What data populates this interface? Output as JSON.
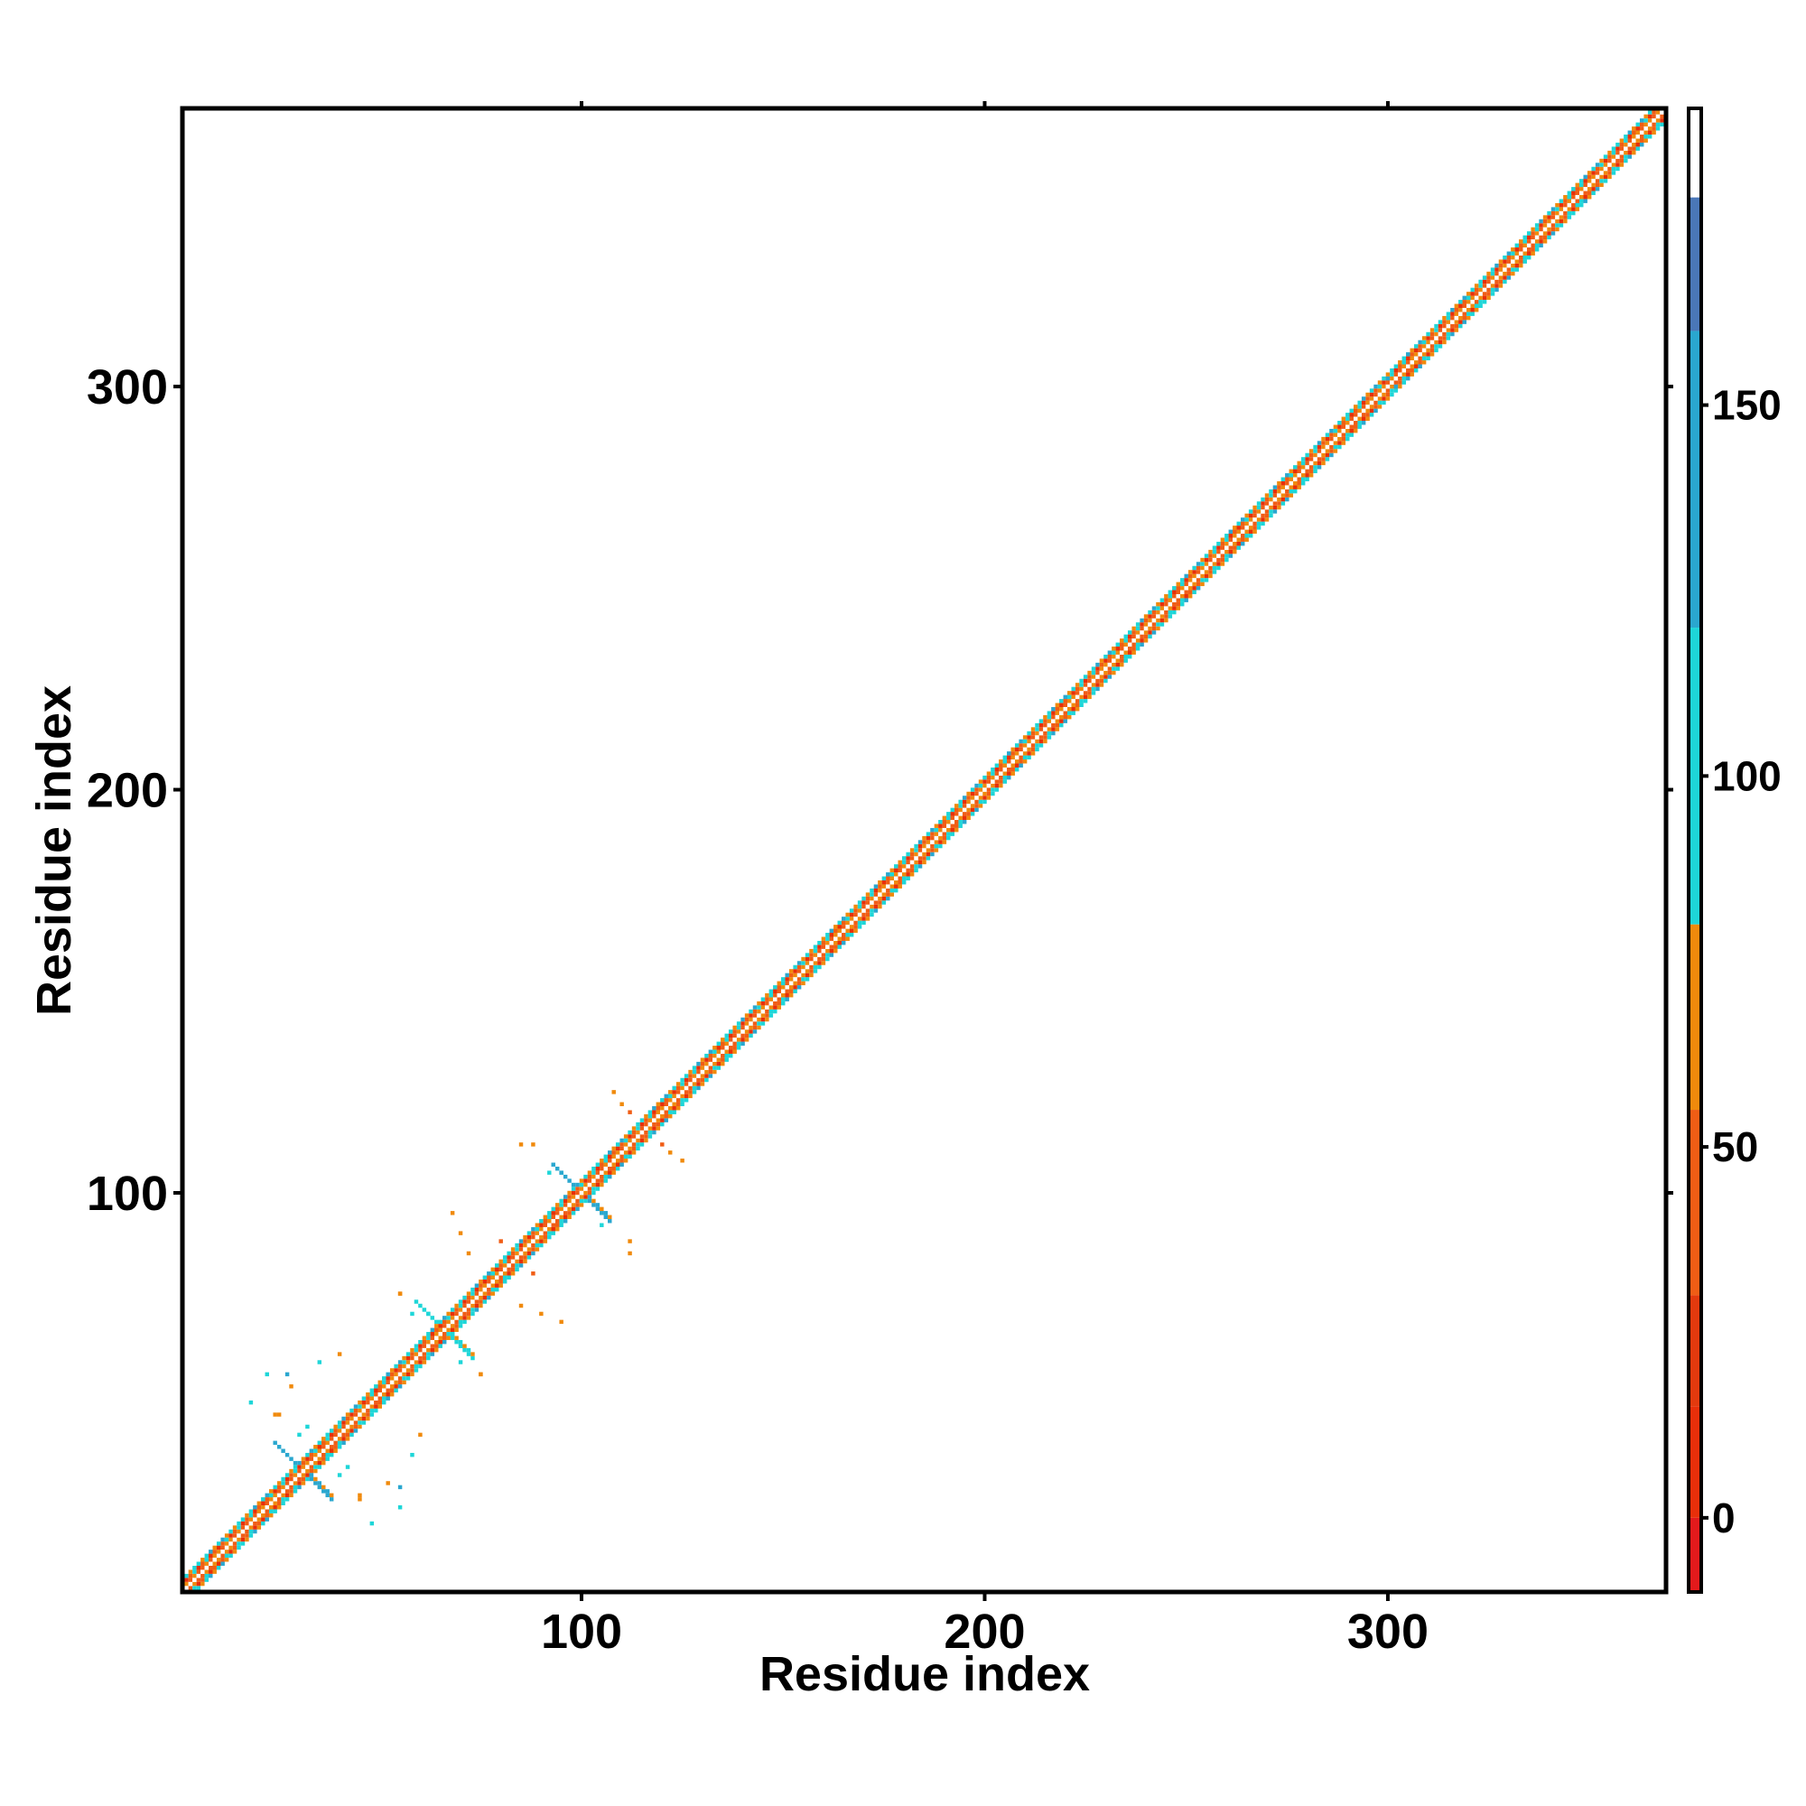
{
  "chart_data": {
    "type": "heatmap",
    "title": "",
    "xlabel": "Residue index",
    "ylabel": "Residue index",
    "xlim": [
      1,
      369
    ],
    "ylim": [
      1,
      369
    ],
    "x_ticks": [
      100,
      200,
      300
    ],
    "x_tick_labels": [
      "100",
      "200",
      "300"
    ],
    "y_ticks": [
      100,
      200,
      300
    ],
    "y_tick_labels": [
      "100",
      "200",
      "300"
    ],
    "grid": false,
    "legend": "colorbar-right",
    "colorbar": {
      "range": [
        -10,
        190
      ],
      "ticks": [
        0,
        50,
        100,
        150
      ],
      "tick_labels": [
        "0",
        "50",
        "100",
        "150"
      ],
      "bands": [
        {
          "from": -10,
          "to": 0,
          "color": "#e31a1c"
        },
        {
          "from": 0,
          "to": 15,
          "color": "#e82f0a"
        },
        {
          "from": 15,
          "to": 30,
          "color": "#e33a0e"
        },
        {
          "from": 30,
          "to": 55,
          "color": "#f05d15"
        },
        {
          "from": 55,
          "to": 80,
          "color": "#f08a0c"
        },
        {
          "from": 80,
          "to": 120,
          "color": "#1ed6d8"
        },
        {
          "from": 120,
          "to": 160,
          "color": "#2aa7cf"
        },
        {
          "from": 160,
          "to": 178,
          "color": "#4a77b8"
        },
        {
          "from": 178,
          "to": 190,
          "color": "#ffffff"
        }
      ]
    },
    "diagonal": {
      "from": 1,
      "to": 369,
      "band_width": 3
    },
    "off_diagonal_clusters": [
      {
        "x": 25,
        "y": 45,
        "value": 60
      },
      {
        "x": 30,
        "y": 40,
        "value": 100
      },
      {
        "x": 27,
        "y": 55,
        "value": 120
      },
      {
        "x": 35,
        "y": 58,
        "value": 95
      },
      {
        "x": 42,
        "y": 32,
        "value": 110
      },
      {
        "x": 45,
        "y": 24,
        "value": 65
      },
      {
        "x": 48,
        "y": 18,
        "value": 95
      },
      {
        "x": 52,
        "y": 28,
        "value": 70
      },
      {
        "x": 55,
        "y": 22,
        "value": 100
      },
      {
        "x": 40,
        "y": 60,
        "value": 55
      },
      {
        "x": 55,
        "y": 75,
        "value": 60
      },
      {
        "x": 58,
        "y": 70,
        "value": 105
      },
      {
        "x": 70,
        "y": 62,
        "value": 100
      },
      {
        "x": 75,
        "y": 55,
        "value": 70
      },
      {
        "x": 68,
        "y": 95,
        "value": 60
      },
      {
        "x": 80,
        "y": 88,
        "value": 45
      },
      {
        "x": 85,
        "y": 72,
        "value": 65
      },
      {
        "x": 90,
        "y": 70,
        "value": 55
      },
      {
        "x": 85,
        "y": 112,
        "value": 55
      },
      {
        "x": 92,
        "y": 105,
        "value": 100
      },
      {
        "x": 105,
        "y": 95,
        "value": 110
      },
      {
        "x": 112,
        "y": 88,
        "value": 65
      },
      {
        "x": 110,
        "y": 122,
        "value": 60
      },
      {
        "x": 120,
        "y": 112,
        "value": 45
      },
      {
        "x": 125,
        "y": 108,
        "value": 70
      },
      {
        "x": 300,
        "y": 302,
        "value": 140
      },
      {
        "x": 320,
        "y": 322,
        "value": 110
      },
      {
        "x": 345,
        "y": 347,
        "value": 105
      }
    ],
    "stars": [
      {
        "x": 31,
        "y": 31,
        "value": 120
      },
      {
        "x": 66,
        "y": 66,
        "value": 110
      },
      {
        "x": 100,
        "y": 100,
        "value": 120
      }
    ]
  }
}
